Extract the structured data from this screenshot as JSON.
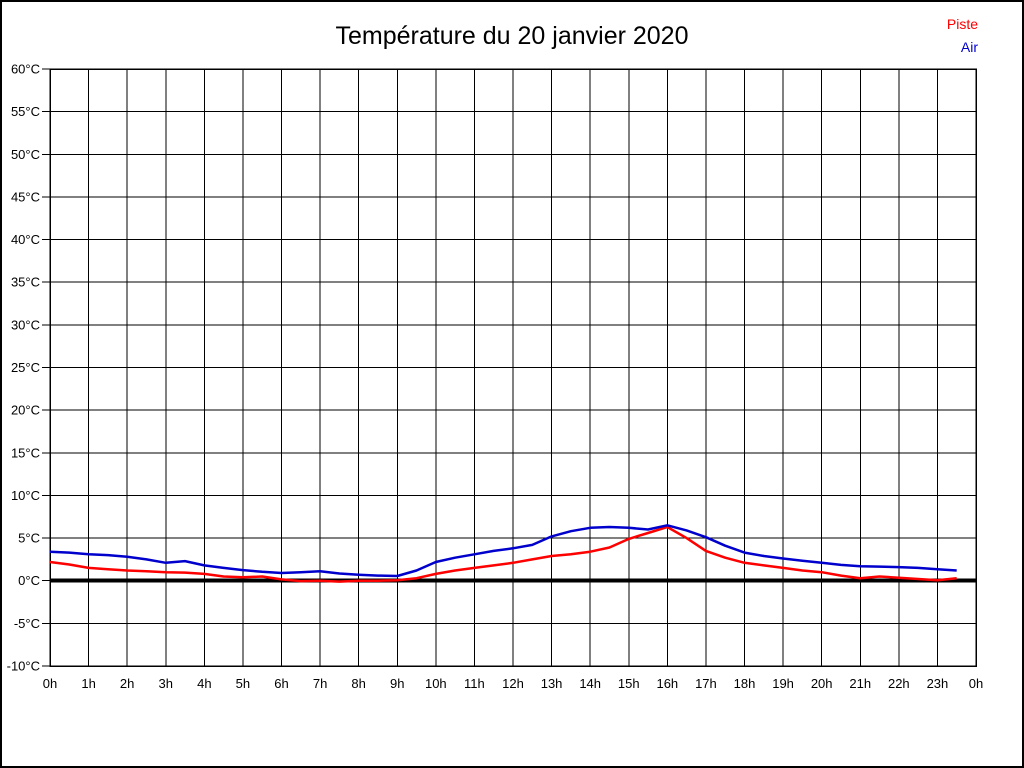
{
  "title": "Température du 20 janvier 2020",
  "legend": [
    {
      "label": "Piste",
      "color": "#ff0000"
    },
    {
      "label": "Air",
      "color": "#0000cc"
    }
  ],
  "chart_data": {
    "type": "line",
    "title": "Température du 20 janvier 2020",
    "xlabel": "",
    "ylabel": "",
    "xlim": [
      0,
      24
    ],
    "ylim": [
      -10,
      60
    ],
    "grid": true,
    "grid_color": "#000000",
    "background_color": "#ffffff",
    "zero_line": {
      "value": 0,
      "color": "#000000",
      "width": 4
    },
    "legend_position": "top-right",
    "x_tick_labels": [
      "0h",
      "1h",
      "2h",
      "3h",
      "4h",
      "5h",
      "6h",
      "7h",
      "8h",
      "9h",
      "10h",
      "11h",
      "12h",
      "13h",
      "14h",
      "15h",
      "16h",
      "17h",
      "18h",
      "19h",
      "20h",
      "21h",
      "22h",
      "23h",
      "0h"
    ],
    "y_ticks": [
      60,
      55,
      50,
      45,
      40,
      35,
      30,
      25,
      20,
      15,
      10,
      5,
      0,
      -5,
      -10
    ],
    "y_tick_suffix": "°C",
    "x": [
      0,
      0.5,
      1,
      1.5,
      2,
      2.5,
      3,
      3.5,
      4,
      4.5,
      5,
      5.5,
      6,
      6.5,
      7,
      7.5,
      8,
      8.5,
      9,
      9.5,
      10,
      10.5,
      11,
      11.5,
      12,
      12.5,
      13,
      13.5,
      14,
      14.5,
      15,
      15.5,
      16,
      16.5,
      17,
      17.5,
      18,
      18.5,
      19,
      19.5,
      20,
      20.5,
      21,
      21.5,
      22,
      22.5,
      23,
      23.5
    ],
    "series": [
      {
        "name": "Piste",
        "color": "#ff0000",
        "values": [
          2.2,
          1.9,
          1.5,
          1.35,
          1.2,
          1.1,
          1.0,
          0.95,
          0.8,
          0.5,
          0.4,
          0.5,
          0.15,
          -0.05,
          0.0,
          -0.1,
          0.0,
          0.0,
          0.05,
          0.3,
          0.8,
          1.2,
          1.5,
          1.8,
          2.1,
          2.5,
          2.9,
          3.1,
          3.4,
          3.9,
          4.9,
          5.6,
          6.3,
          5.0,
          3.5,
          2.7,
          2.1,
          1.8,
          1.5,
          1.2,
          1.0,
          0.6,
          0.3,
          0.5,
          0.35,
          0.2,
          0.05,
          0.3
        ]
      },
      {
        "name": "Air",
        "color": "#0000cc",
        "values": [
          3.4,
          3.3,
          3.1,
          3.0,
          2.8,
          2.5,
          2.1,
          2.3,
          1.8,
          1.5,
          1.25,
          1.05,
          0.9,
          1.0,
          1.1,
          0.85,
          0.7,
          0.6,
          0.55,
          1.2,
          2.2,
          2.7,
          3.1,
          3.5,
          3.8,
          4.2,
          5.2,
          5.8,
          6.2,
          6.3,
          6.2,
          6.0,
          6.5,
          5.9,
          5.1,
          4.1,
          3.3,
          2.9,
          2.6,
          2.35,
          2.1,
          1.85,
          1.7,
          1.65,
          1.6,
          1.5,
          1.35,
          1.2
        ]
      }
    ]
  }
}
